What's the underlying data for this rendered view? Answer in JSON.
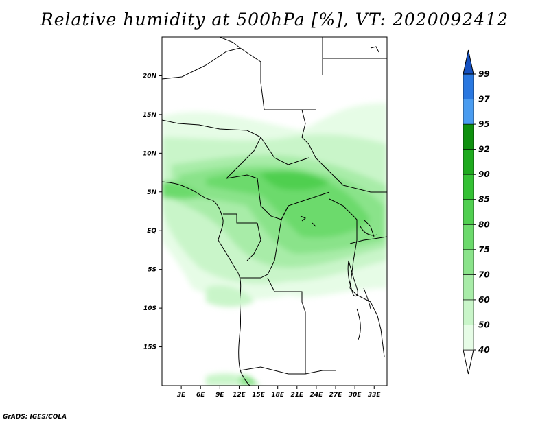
{
  "title": "Relative humidity at 500hPa [%], VT: 2020092412",
  "credit": "GrADS: IGES/COLA",
  "map": {
    "lon_range": [
      0,
      35
    ],
    "lat_range": [
      -20,
      25
    ],
    "lon_ticks": [
      3,
      6,
      9,
      12,
      15,
      18,
      21,
      24,
      27,
      30,
      33
    ],
    "lat_ticks": [
      20,
      15,
      10,
      5,
      0,
      -5,
      -10,
      -15
    ],
    "lon_labels": [
      "3E",
      "6E",
      "9E",
      "12E",
      "15E",
      "18E",
      "21E",
      "24E",
      "27E",
      "30E",
      "33E"
    ],
    "lat_labels": [
      "20N",
      "15N",
      "10N",
      "5N",
      "EQ",
      "5S",
      "10S",
      "15S"
    ]
  },
  "colorbar": {
    "levels": [
      "40",
      "50",
      "60",
      "70",
      "75",
      "80",
      "85",
      "90",
      "92",
      "95",
      "97",
      "99"
    ],
    "colors": [
      "#ffffff",
      "#e6fce6",
      "#c9f5c9",
      "#a8eca8",
      "#8ae38a",
      "#6cda6c",
      "#50cf50",
      "#34c134",
      "#1eaa1e",
      "#0e900e",
      "#4a9cf0",
      "#2a78e0",
      "#1450c0"
    ]
  }
}
